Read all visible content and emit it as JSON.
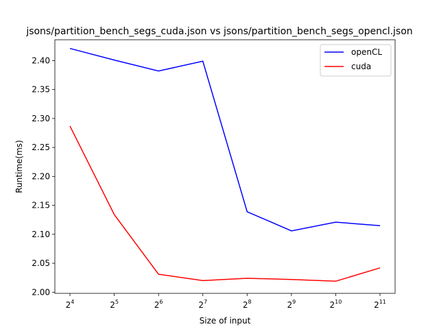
{
  "chart_data": {
    "type": "line",
    "title": "jsons/partition_bench_segs_cuda.json vs jsons/partition_bench_segs_opencl.json",
    "xlabel": "Size of input",
    "ylabel": "Runtime(ms)",
    "x": [
      16,
      32,
      64,
      128,
      256,
      512,
      1024,
      2048
    ],
    "x_tick_labels": [
      {
        "base": "2",
        "exp": "4"
      },
      {
        "base": "2",
        "exp": "5"
      },
      {
        "base": "2",
        "exp": "6"
      },
      {
        "base": "2",
        "exp": "7"
      },
      {
        "base": "2",
        "exp": "8"
      },
      {
        "base": "2",
        "exp": "9"
      },
      {
        "base": "2",
        "exp": "10"
      },
      {
        "base": "2",
        "exp": "11"
      }
    ],
    "x_scale": "log2",
    "y_ticks": [
      "2.00",
      "2.05",
      "2.10",
      "2.15",
      "2.20",
      "2.25",
      "2.30",
      "2.35",
      "2.40"
    ],
    "ylim": [
      1.998,
      2.436
    ],
    "grid": false,
    "legend_position": "top-right",
    "series": [
      {
        "name": "openCL",
        "color": "#0000ff",
        "values": [
          2.421,
          2.401,
          2.382,
          2.399,
          2.139,
          2.106,
          2.121,
          2.115
        ]
      },
      {
        "name": "cuda",
        "color": "#ff0000",
        "values": [
          2.287,
          2.134,
          2.031,
          2.02,
          2.024,
          2.022,
          2.019,
          2.042
        ]
      }
    ]
  }
}
